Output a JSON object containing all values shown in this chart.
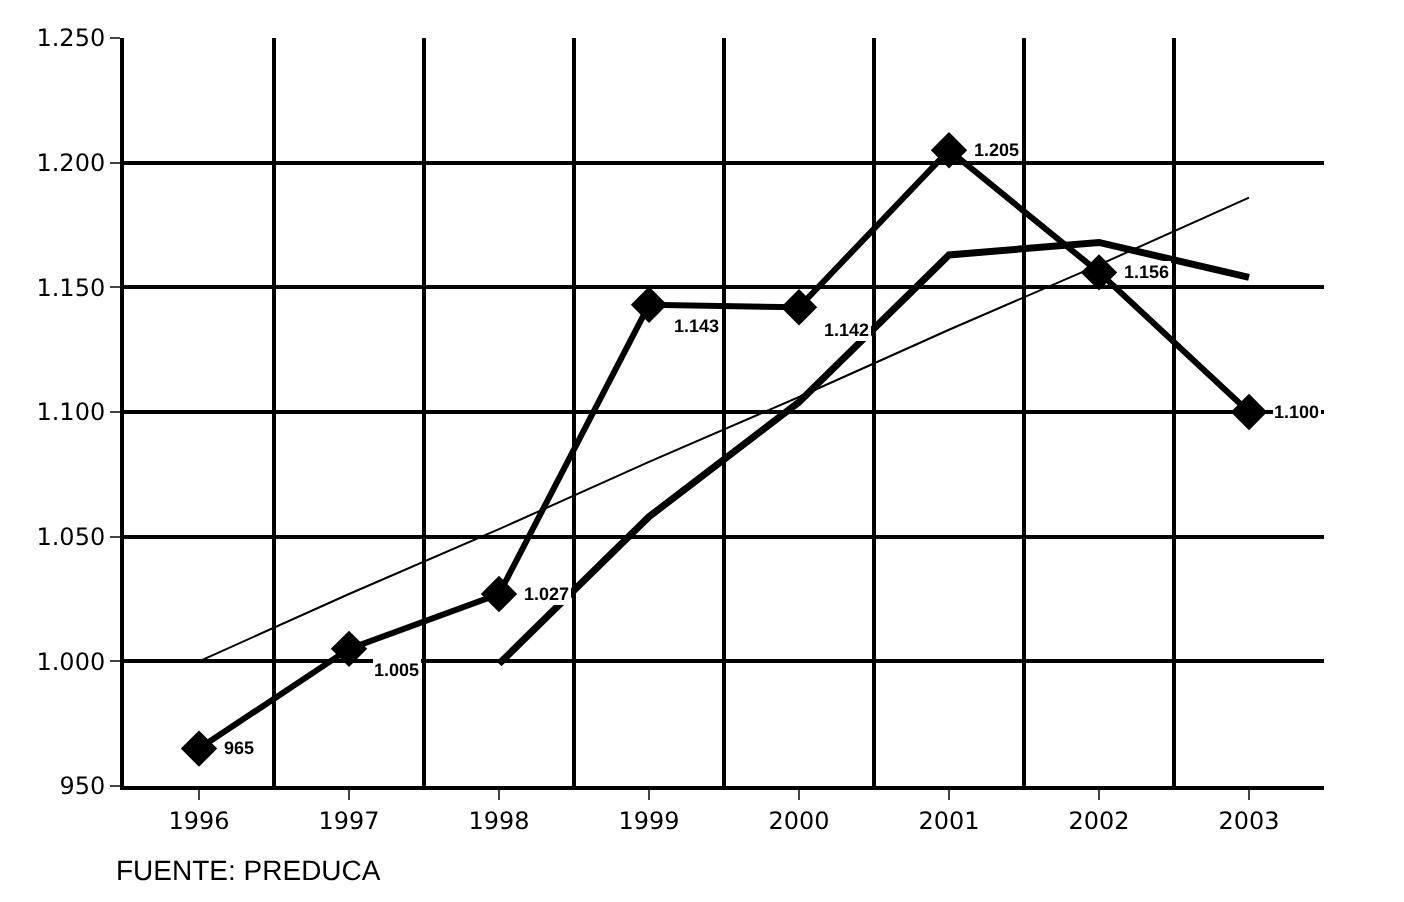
{
  "chart_data": {
    "type": "line",
    "categories": [
      "1996",
      "1997",
      "1998",
      "1999",
      "2000",
      "2001",
      "2002",
      "2003"
    ],
    "series": [
      {
        "color": "#000000",
        "marker": "diamond",
        "values": [
          965,
          1005,
          1027,
          1143,
          1142,
          1205,
          1156,
          1100
        ],
        "value_labels": [
          "965",
          "1.005",
          "1.027",
          "1.143",
          "1.142",
          "1.205",
          "1.156",
          "1.100"
        ]
      },
      {
        "color": "#000000",
        "marker": "none",
        "values": [
          null,
          null,
          999,
          1058,
          1104,
          1163,
          1168,
          1154
        ]
      },
      {
        "color": "#000000",
        "marker": "none",
        "values": [
          1000,
          1027,
          1053,
          1080,
          1106,
          1133,
          1159,
          1186
        ]
      }
    ],
    "ylim": [
      950,
      1250
    ],
    "yticks": [
      {
        "value": 950,
        "label": "950"
      },
      {
        "value": 1000,
        "label": "1.000"
      },
      {
        "value": 1050,
        "label": "1.050"
      },
      {
        "value": 1100,
        "label": "1.100"
      },
      {
        "value": 1150,
        "label": "1.150"
      },
      {
        "value": 1200,
        "label": "1.200"
      },
      {
        "value": 1250,
        "label": "1.250"
      }
    ],
    "grid": true,
    "annotations": [
      "FUENTE: PREDUCA"
    ]
  }
}
